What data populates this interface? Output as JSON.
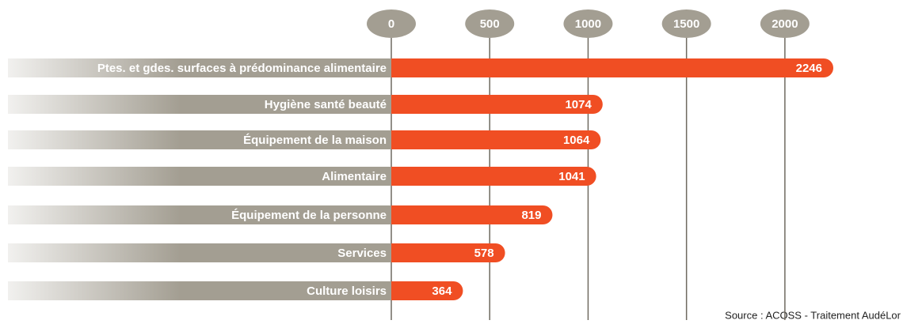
{
  "chart_data": {
    "type": "bar",
    "categories": [
      "Ptes. et gdes. surfaces à prédominance alimentaire",
      "Hygiène santé beauté",
      "Équipement de la maison",
      "Alimentaire",
      "Équipement de la personne",
      "Services",
      "Culture loisirs"
    ],
    "values": [
      2246,
      1074,
      1064,
      1041,
      819,
      578,
      364
    ],
    "color": "#f04e23",
    "xlim": [
      0,
      2250
    ],
    "xticks": [
      0,
      500,
      1000,
      1500,
      2000
    ],
    "grid": true,
    "source": "Source : ACOSS - Traitement AudéLor"
  }
}
